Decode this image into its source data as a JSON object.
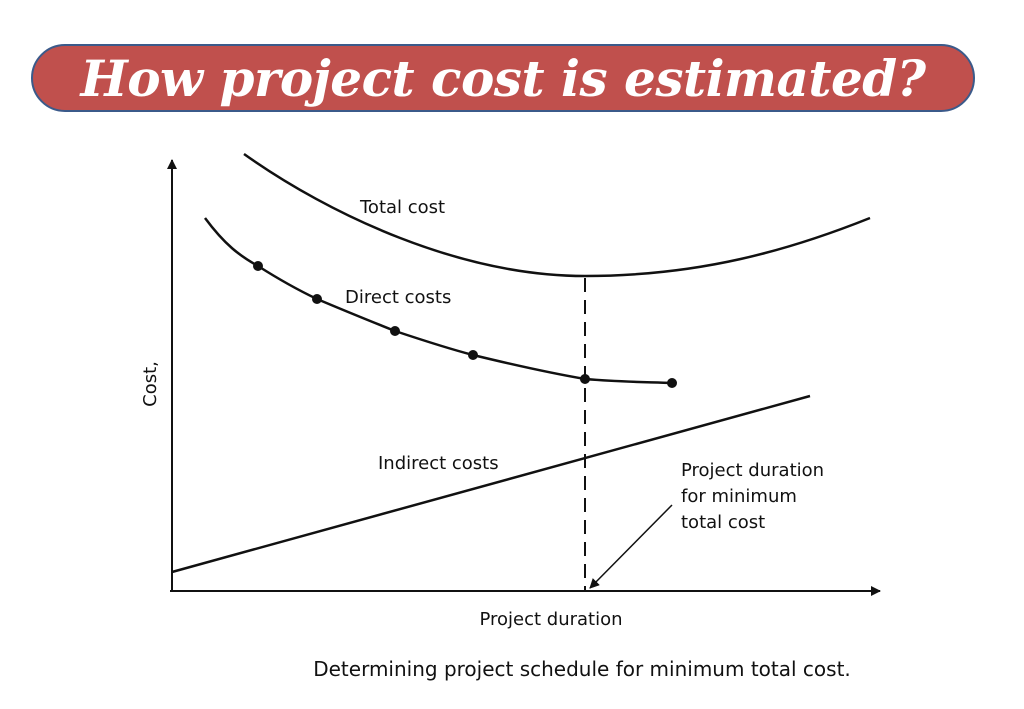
{
  "title": "How project cost is estimated?",
  "colors": {
    "banner_fill": "#c0504d",
    "banner_border": "#3b5a8a",
    "title_text": "#ffffff",
    "line": "#111111"
  },
  "diagram": {
    "y_axis_label": "Cost,",
    "x_axis_label": "Project duration",
    "curves": {
      "total_cost": "Total cost",
      "direct_costs": "Direct costs",
      "indirect_costs": "Indirect costs"
    },
    "annotation": {
      "line1": "Project duration",
      "line2": "for minimum",
      "line3": "total cost"
    },
    "caption": "Determining project schedule for minimum total cost."
  }
}
